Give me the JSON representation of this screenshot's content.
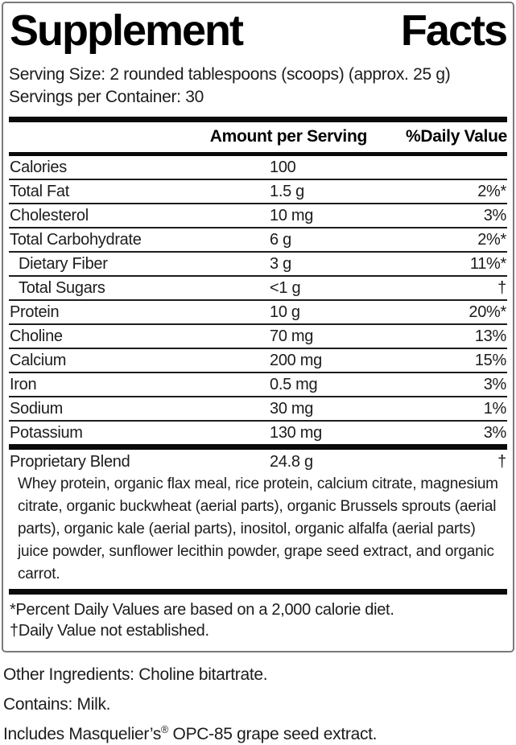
{
  "colors": {
    "bar_color": "#0a0a0a",
    "separator_color": "#1c1c1c",
    "panel_border_color": "#7a7a7a",
    "text_color": "#1c1c1c"
  },
  "panel": {
    "title_word_left": "Supplement",
    "title_word_right": "Facts",
    "serving_size": "Serving Size: 2 rounded tablespoons (scoops) (approx. 25 g)",
    "servings_per_container": "Servings per Container: 30",
    "columns": {
      "amount_header": "Amount per Serving",
      "daily_value_header": "%Daily Value"
    },
    "rows": [
      {
        "name": "Calories",
        "amount": "100",
        "dv": "",
        "indent": false
      },
      {
        "name": "Total Fat",
        "amount": "1.5 g",
        "dv": "2%*",
        "indent": false
      },
      {
        "name": "Cholesterol",
        "amount": "10 mg",
        "dv": "3%",
        "indent": false
      },
      {
        "name": "Total Carbohydrate",
        "amount": "6 g",
        "dv": "2%*",
        "indent": false
      },
      {
        "name": "Dietary Fiber",
        "amount": "3 g",
        "dv": "11%*",
        "indent": true
      },
      {
        "name": "Total Sugars",
        "amount": "<1 g",
        "dv": "†",
        "indent": true
      },
      {
        "name": "Protein",
        "amount": "10 g",
        "dv": "20%*",
        "indent": false
      },
      {
        "name": "Choline",
        "amount": "70 mg",
        "dv": "13%",
        "indent": false
      },
      {
        "name": "Calcium",
        "amount": "200 mg",
        "dv": "15%",
        "indent": false
      },
      {
        "name": "Iron",
        "amount": "0.5 mg",
        "dv": "3%",
        "indent": false
      },
      {
        "name": "Sodium",
        "amount": "30 mg",
        "dv": "1%",
        "indent": false
      },
      {
        "name": "Potassium",
        "amount": "130 mg",
        "dv": "3%",
        "indent": false
      }
    ],
    "blend": {
      "name": "Proprietary Blend",
      "amount": "24.8 g",
      "dv": "†",
      "description": "Whey protein, organic flax meal, rice protein, calcium citrate, magnesium citrate, organic buckwheat (aerial parts), organic Brussels sprouts (aerial parts), organic kale (aerial parts), inositol, organic alfalfa (aerial parts) juice powder, sunflower lecithin powder, grape seed extract, and organic carrot."
    },
    "footnotes": {
      "percent_dv": "*Percent Daily Values are based on a 2,000 calorie diet.",
      "dagger": "†Daily Value not established."
    }
  },
  "bottom_notes": {
    "other_ingredients": "Other Ingredients: Choline bitartrate.",
    "contains": "Contains: Milk.",
    "includes_prefix": "Includes Masquelier’s",
    "includes_reg_mark": "®",
    "includes_suffix": " OPC-85 grape seed extract."
  }
}
